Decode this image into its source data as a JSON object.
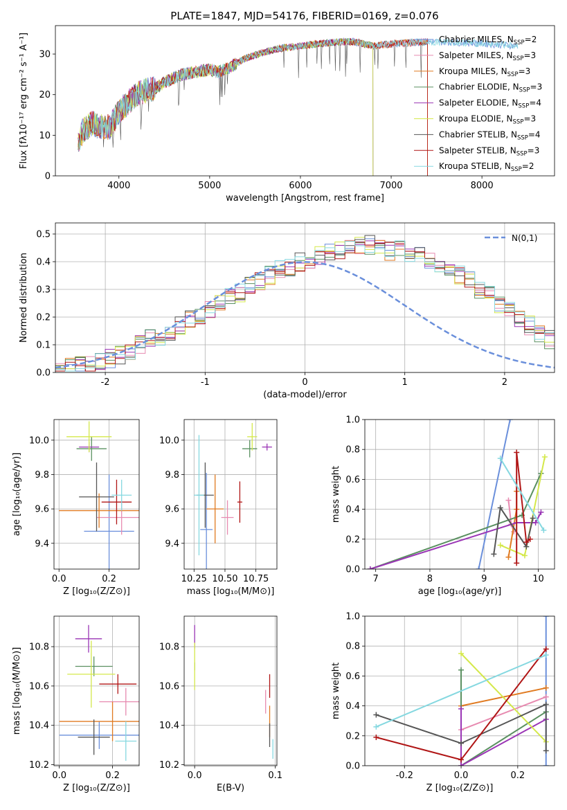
{
  "figure_title": "PLATE=1847, MJD=54176, FIBERID=0169, z=0.076",
  "colors": {
    "Chabrier MILES": "#6a8fdb",
    "Salpeter MILES": "#e78ab0",
    "Kroupa MILES": "#e07a20",
    "Chabrier ELODIE": "#5a9060",
    "Salpeter ELODIE": "#9a35b5",
    "Kroupa ELODIE": "#d4e84a",
    "Chabrier STELIB": "#555555",
    "Salpeter STELIB": "#b01515",
    "Kroupa STELIB": "#85d8e0",
    "gauss": "#6a8fdb"
  },
  "chart_data": [
    {
      "id": "spectrum",
      "type": "line",
      "xlabel": "wavelength [Angstrom, rest frame]",
      "ylabel": "Flux [fλ10⁻¹⁷ erg cm⁻² s⁻¹ A⁻¹]",
      "xlim": [
        3300,
        8800
      ],
      "ylim": [
        0,
        37
      ],
      "xticks": [
        4000,
        5000,
        6000,
        7000,
        8000
      ],
      "yticks": [
        0,
        10,
        20,
        30
      ],
      "legend_position": "right",
      "continuum": [
        [
          3550,
          8
        ],
        [
          3600,
          11
        ],
        [
          3700,
          13
        ],
        [
          3800,
          12
        ],
        [
          3900,
          12
        ],
        [
          4000,
          16
        ],
        [
          4100,
          18
        ],
        [
          4200,
          20
        ],
        [
          4300,
          21
        ],
        [
          4400,
          21.5
        ],
        [
          4500,
          23
        ],
        [
          4700,
          25
        ],
        [
          4900,
          25.8
        ],
        [
          5000,
          26.2
        ],
        [
          5100,
          25.5
        ],
        [
          5200,
          26.5
        ],
        [
          5400,
          29
        ],
        [
          5600,
          30.5
        ],
        [
          5800,
          31.5
        ],
        [
          6000,
          32
        ],
        [
          6200,
          32.5
        ],
        [
          6400,
          33
        ],
        [
          6600,
          33
        ],
        [
          6800,
          32
        ],
        [
          7000,
          32.5
        ],
        [
          7200,
          32.8
        ],
        [
          7400,
          33
        ],
        [
          7600,
          33
        ],
        [
          7800,
          32.8
        ],
        [
          8000,
          32.6
        ],
        [
          8200,
          32.3
        ],
        [
          8400,
          32
        ]
      ],
      "series": [
        {
          "name": "Chabrier MILES, N_SSP=2",
          "legend": "Chabrier MILES, N",
          "sub": "SSP",
          "suffix": "=2",
          "end": 8400
        },
        {
          "name": "Salpeter MILES, N_SSP=3",
          "legend": "Salpeter MILES, N",
          "sub": "SSP",
          "suffix": "=3",
          "end": 7400
        },
        {
          "name": "Kroupa MILES, N_SSP=3",
          "legend": "Kroupa MILES, N",
          "sub": "SSP",
          "suffix": "=3",
          "end": 7400
        },
        {
          "name": "Chabrier ELODIE, N_SSP=3",
          "legend": "Chabrier ELODIE, N",
          "sub": "SSP",
          "suffix": "=3",
          "end": 6800
        },
        {
          "name": "Salpeter ELODIE, N_SSP=4",
          "legend": "Salpeter ELODIE, N",
          "sub": "SSP",
          "suffix": "=4",
          "end": 6800
        },
        {
          "name": "Kroupa ELODIE, N_SSP=3",
          "legend": "Kroupa ELODIE, N",
          "sub": "SSP",
          "suffix": "=3",
          "end": 6800
        },
        {
          "name": "Chabrier STELIB, N_SSP=4",
          "legend": "Chabrier STELIB, N",
          "sub": "SSP",
          "suffix": "=4",
          "end": 7400
        },
        {
          "name": "Salpeter STELIB, N_SSP=3",
          "legend": "Salpeter STELIB, N",
          "sub": "SSP",
          "suffix": "=3",
          "end": 7400
        },
        {
          "name": "Kroupa STELIB, N_SSP=2",
          "legend": "Kroupa STELIB, N",
          "sub": "SSP",
          "suffix": "=2",
          "end": 8400
        }
      ]
    },
    {
      "id": "residuals",
      "type": "line",
      "xlabel": "(data-model)/error",
      "ylabel": "Normed distribution",
      "xlim": [
        -2.5,
        2.5
      ],
      "ylim": [
        0,
        0.54
      ],
      "xticks": [
        -2,
        -1,
        0,
        1,
        2
      ],
      "yticks": [
        0.0,
        0.1,
        0.2,
        0.3,
        0.4,
        0.5
      ],
      "legend_label": "N(0,1)",
      "legend_position": "top-right",
      "bin_width": 0.1,
      "base_histogram": [
        0.02,
        0.02,
        0.025,
        0.03,
        0.04,
        0.05,
        0.06,
        0.08,
        0.1,
        0.12,
        0.13,
        0.15,
        0.17,
        0.19,
        0.21,
        0.23,
        0.25,
        0.27,
        0.29,
        0.31,
        0.33,
        0.35,
        0.37,
        0.38,
        0.4,
        0.41,
        0.42,
        0.43,
        0.44,
        0.45,
        0.46,
        0.46,
        0.45,
        0.44,
        0.44,
        0.43,
        0.42,
        0.4,
        0.39,
        0.37,
        0.35,
        0.33,
        0.3,
        0.28,
        0.25,
        0.22,
        0.2,
        0.17,
        0.14,
        0.12
      ]
    },
    {
      "id": "age_vs_Z",
      "type": "scatter",
      "xlabel": "Z [log₁₀(Z/Z⊙)]",
      "ylabel": "age  [log₁₀(age/yr)]",
      "xlim": [
        -0.02,
        0.32
      ],
      "ylim": [
        9.25,
        10.12
      ],
      "xticks": [
        0.0,
        0.2
      ],
      "yticks": [
        9.4,
        9.6,
        9.8,
        10.0
      ],
      "points": [
        {
          "name": "Chabrier MILES",
          "x": 0.2,
          "xerr": 0.1,
          "y": 9.47,
          "yerr": 0.33
        },
        {
          "name": "Salpeter MILES",
          "x": 0.25,
          "xerr": 0.1,
          "y": 9.55,
          "yerr": 0.1
        },
        {
          "name": "Kroupa MILES",
          "x": 0.16,
          "xerr": 0.16,
          "y": 9.59,
          "yerr": 0.1
        },
        {
          "name": "Chabrier ELODIE",
          "x": 0.13,
          "xerr": 0.06,
          "y": 9.95,
          "yerr": 0.07
        },
        {
          "name": "Salpeter ELODIE",
          "x": 0.12,
          "xerr": 0.04,
          "y": 9.96,
          "yerr": 0.03
        },
        {
          "name": "Kroupa ELODIE",
          "x": 0.12,
          "xerr": 0.09,
          "y": 10.02,
          "yerr": 0.09
        },
        {
          "name": "Chabrier STELIB",
          "x": 0.15,
          "xerr": 0.07,
          "y": 9.67,
          "yerr": 0.2
        },
        {
          "name": "Salpeter STELIB",
          "x": 0.23,
          "xerr": 0.06,
          "y": 9.64,
          "yerr": 0.13
        },
        {
          "name": "Kroupa STELIB",
          "x": 0.25,
          "xerr": 0.04,
          "y": 9.68,
          "yerr": 0.09
        }
      ]
    },
    {
      "id": "age_vs_mass",
      "type": "scatter",
      "xlabel": "mass [log₁₀(M/M⊙)]",
      "ylabel": "",
      "xlim": [
        10.17,
        10.92
      ],
      "ylim": [
        9.25,
        10.12
      ],
      "xticks": [
        10.25,
        10.5,
        10.75
      ],
      "yticks": [
        9.4,
        9.6,
        9.8,
        10.0
      ],
      "points": [
        {
          "name": "Chabrier MILES",
          "x": 10.35,
          "xerr": 0.05,
          "y": 9.48,
          "yerr": 0.33
        },
        {
          "name": "Salpeter MILES",
          "x": 10.52,
          "xerr": 0.05,
          "y": 9.55,
          "yerr": 0.1
        },
        {
          "name": "Kroupa MILES",
          "x": 10.42,
          "xerr": 0.07,
          "y": 9.6,
          "yerr": 0.2
        },
        {
          "name": "Chabrier ELODIE",
          "x": 10.7,
          "xerr": 0.06,
          "y": 9.95,
          "yerr": 0.05
        },
        {
          "name": "Salpeter ELODIE",
          "x": 10.84,
          "xerr": 0.04,
          "y": 9.96,
          "yerr": 0.02
        },
        {
          "name": "Kroupa ELODIE",
          "x": 10.72,
          "xerr": 0.04,
          "y": 10.02,
          "yerr": 0.08
        },
        {
          "name": "Chabrier STELIB",
          "x": 10.34,
          "xerr": 0.07,
          "y": 9.68,
          "yerr": 0.19
        },
        {
          "name": "Salpeter STELIB",
          "x": 10.62,
          "xerr": 0.02,
          "y": 9.64,
          "yerr": 0.12
        },
        {
          "name": "Kroupa STELIB",
          "x": 10.29,
          "xerr": 0.04,
          "y": 9.68,
          "yerr": 0.35
        }
      ]
    },
    {
      "id": "massweight_vs_age",
      "type": "line",
      "xlabel": "age  [log₁₀(age/yr)]",
      "ylabel": "mass weight",
      "xlim": [
        6.8,
        10.3
      ],
      "ylim": [
        0,
        1
      ],
      "xticks": [
        7,
        8,
        9,
        10
      ],
      "yticks": [
        0.0,
        0.2,
        0.4,
        0.6,
        0.8,
        1.0
      ],
      "series": [
        {
          "name": "Chabrier MILES",
          "x": [
            8.9,
            9.48
          ],
          "y": [
            0.0,
            1.0
          ]
        },
        {
          "name": "Salpeter MILES",
          "x": [
            9.45,
            9.5,
            9.55
          ],
          "y": [
            0.46,
            0.3,
            0.25
          ]
        },
        {
          "name": "Kroupa MILES",
          "x": [
            9.45,
            9.6,
            9.6
          ],
          "y": [
            0.08,
            0.4,
            0.52
          ]
        },
        {
          "name": "Chabrier ELODIE",
          "x": [
            6.9,
            9.7,
            10.05
          ],
          "y": [
            0.0,
            0.36,
            0.64
          ]
        },
        {
          "name": "Salpeter ELODIE",
          "x": [
            6.9,
            9.6,
            9.95,
            10.05
          ],
          "y": [
            0.0,
            0.31,
            0.31,
            0.38
          ]
        },
        {
          "name": "Kroupa ELODIE",
          "x": [
            9.3,
            9.75,
            10.12
          ],
          "y": [
            0.16,
            0.09,
            0.75
          ]
        },
        {
          "name": "Chabrier STELIB",
          "x": [
            9.18,
            9.3,
            9.78,
            9.9
          ],
          "y": [
            0.1,
            0.41,
            0.15,
            0.34
          ]
        },
        {
          "name": "Salpeter STELIB",
          "x": [
            9.6,
            9.6,
            9.78,
            9.85
          ],
          "y": [
            0.04,
            0.78,
            0.18,
            0.2
          ]
        },
        {
          "name": "Kroupa STELIB",
          "x": [
            9.3,
            10.1
          ],
          "y": [
            0.74,
            0.26
          ]
        }
      ]
    },
    {
      "id": "mass_vs_Z",
      "type": "scatter",
      "xlabel": "Z [log₁₀(Z/Z⊙)]",
      "ylabel": "mass [log₁₀(M/M⊙)]",
      "xlim": [
        -0.02,
        0.3
      ],
      "ylim": [
        10.195,
        10.955
      ],
      "xticks": [
        0.0,
        0.2
      ],
      "yticks": [
        10.2,
        10.4,
        10.6,
        10.8
      ],
      "points": [
        {
          "name": "Chabrier MILES",
          "x": 0.15,
          "xerr": 0.15,
          "y": 10.35,
          "yerr": 0.07
        },
        {
          "name": "Salpeter MILES",
          "x": 0.25,
          "xerr": 0.1,
          "y": 10.52,
          "yerr": 0.07
        },
        {
          "name": "Kroupa MILES",
          "x": 0.2,
          "xerr": 0.2,
          "y": 10.42,
          "yerr": 0.1
        },
        {
          "name": "Chabrier ELODIE",
          "x": 0.13,
          "xerr": 0.07,
          "y": 10.7,
          "yerr": 0.05
        },
        {
          "name": "Salpeter ELODIE",
          "x": 0.11,
          "xerr": 0.05,
          "y": 10.84,
          "yerr": 0.07
        },
        {
          "name": "Kroupa ELODIE",
          "x": 0.12,
          "xerr": 0.09,
          "y": 10.66,
          "yerr": 0.17
        },
        {
          "name": "Chabrier STELIB",
          "x": 0.13,
          "xerr": 0.06,
          "y": 10.34,
          "yerr": 0.09
        },
        {
          "name": "Salpeter STELIB",
          "x": 0.22,
          "xerr": 0.07,
          "y": 10.61,
          "yerr": 0.05
        },
        {
          "name": "Kroupa STELIB",
          "x": 0.25,
          "xerr": 0.04,
          "y": 10.32,
          "yerr": 0.1
        }
      ]
    },
    {
      "id": "mass_vs_EBV",
      "type": "scatter",
      "xlabel": "E(B-V)",
      "ylabel": "",
      "xlim": [
        -0.013,
        0.102
      ],
      "ylim": [
        10.195,
        10.955
      ],
      "xticks": [
        0.0,
        0.1
      ],
      "yticks": [
        10.2,
        10.4,
        10.6,
        10.8
      ],
      "points": [
        {
          "name": "Chabrier MILES",
          "x": 0.0,
          "xerr": 0.0,
          "y": 10.2,
          "yerr": 0.0
        },
        {
          "name": "Salpeter MILES",
          "x": 0.088,
          "xerr": 0.0,
          "y": 10.52,
          "yerr": 0.06
        },
        {
          "name": "Kroupa MILES",
          "x": 0.093,
          "xerr": 0.0,
          "y": 10.42,
          "yerr": 0.08
        },
        {
          "name": "Chabrier ELODIE",
          "x": 0.0,
          "xerr": 0.0,
          "y": 10.7,
          "yerr": 0.02
        },
        {
          "name": "Salpeter ELODIE",
          "x": 0.0,
          "xerr": 0.0,
          "y": 10.85,
          "yerr": 0.06
        },
        {
          "name": "Kroupa ELODIE",
          "x": 0.0,
          "xerr": 0.0,
          "y": 10.7,
          "yerr": 0.12
        },
        {
          "name": "Chabrier STELIB",
          "x": 0.093,
          "xerr": 0.0,
          "y": 10.35,
          "yerr": 0.06
        },
        {
          "name": "Salpeter STELIB",
          "x": 0.093,
          "xerr": 0.0,
          "y": 10.6,
          "yerr": 0.06
        },
        {
          "name": "Kroupa STELIB",
          "x": 0.097,
          "xerr": 0.0,
          "y": 10.28,
          "yerr": 0.05
        }
      ]
    },
    {
      "id": "massweight_vs_Z",
      "type": "line",
      "xlabel": "Z [log₁₀(Z/Z⊙)]",
      "ylabel": "mass weight",
      "xlim": [
        -0.34,
        0.33
      ],
      "ylim": [
        0,
        1
      ],
      "xticks": [
        -0.2,
        0.0,
        0.2
      ],
      "yticks": [
        0.0,
        0.2,
        0.4,
        0.6,
        0.8,
        1.0
      ],
      "series": [
        {
          "name": "Chabrier MILES",
          "x": [
            0.3,
            0.3
          ],
          "y": [
            0.0,
            1.0
          ]
        },
        {
          "name": "Salpeter MILES",
          "x": [
            0.0,
            0.3
          ],
          "y": [
            0.24,
            0.46
          ]
        },
        {
          "name": "Kroupa MILES",
          "x": [
            0.0,
            0.3
          ],
          "y": [
            0.4,
            0.52
          ]
        },
        {
          "name": "Chabrier ELODIE",
          "x": [
            0.0,
            0.0,
            0.3
          ],
          "y": [
            0.64,
            0.0,
            0.36
          ]
        },
        {
          "name": "Salpeter ELODIE",
          "x": [
            0.0,
            0.0,
            0.3
          ],
          "y": [
            0.38,
            0.0,
            0.31
          ]
        },
        {
          "name": "Kroupa ELODIE",
          "x": [
            0.0,
            0.3
          ],
          "y": [
            0.75,
            0.16
          ]
        },
        {
          "name": "Chabrier STELIB",
          "x": [
            -0.3,
            0.0,
            0.3,
            0.3
          ],
          "y": [
            0.34,
            0.15,
            0.41,
            0.1
          ]
        },
        {
          "name": "Salpeter STELIB",
          "x": [
            -0.3,
            0.0,
            0.3
          ],
          "y": [
            0.19,
            0.04,
            0.78
          ]
        },
        {
          "name": "Kroupa STELIB",
          "x": [
            -0.3,
            0.3
          ],
          "y": [
            0.26,
            0.74
          ]
        }
      ]
    }
  ]
}
